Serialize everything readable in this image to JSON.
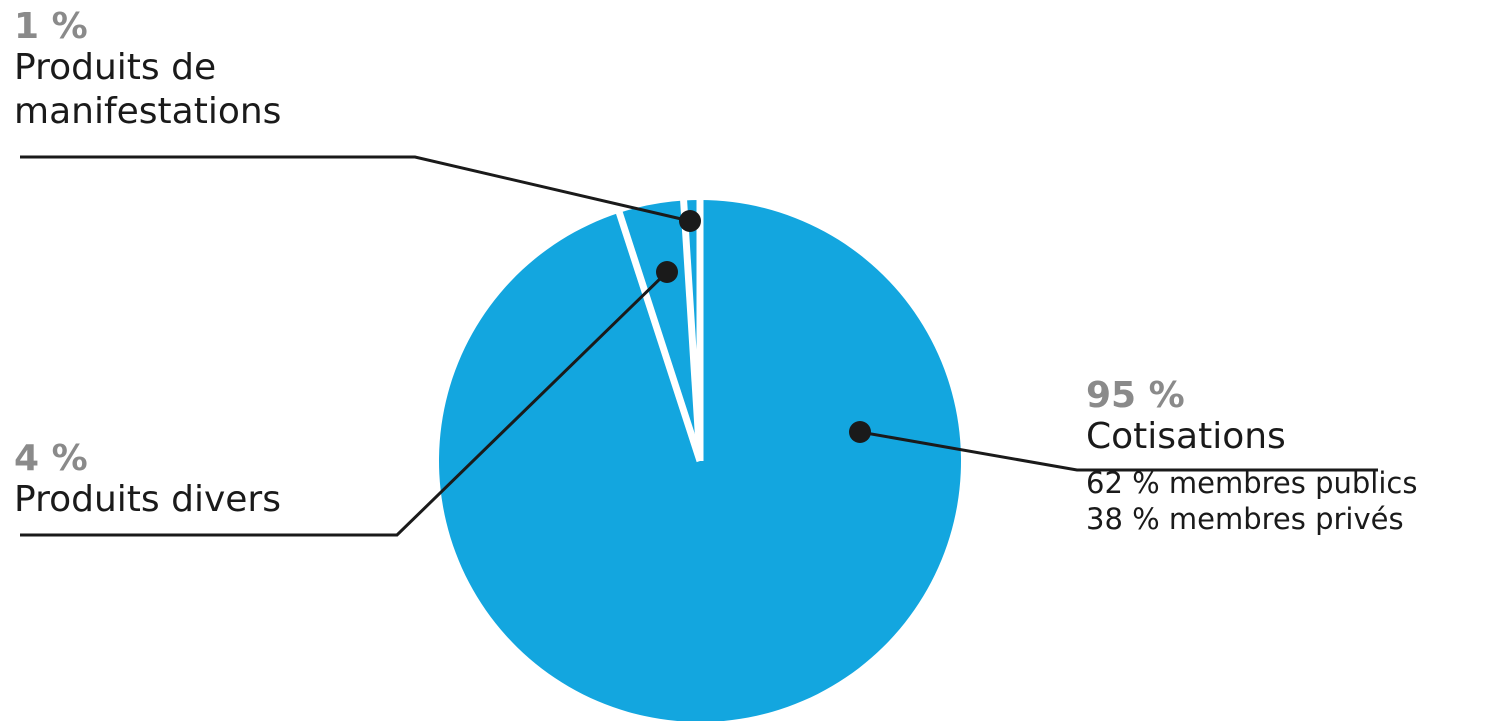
{
  "chart_data": {
    "type": "pie",
    "slices": [
      {
        "label": "Cotisations",
        "value": 95,
        "value_label": "95 %",
        "details": [
          "62 % membres publics",
          "38 % membres privés"
        ],
        "color": "#13a6df"
      },
      {
        "label": "Produits divers",
        "value": 4,
        "value_label": "4 %",
        "details": [],
        "color": "#13a6df"
      },
      {
        "label": "Produits de manifestations",
        "value": 1,
        "value_label": "1 %",
        "details": [],
        "color": "#13a6df"
      }
    ],
    "start_angle": "top",
    "direction": "clockwise",
    "separator_color": "#ffffff",
    "leader_color": "#1a1a1a",
    "pct_color": "#8a8a8a",
    "legend": "none"
  },
  "labels": {
    "manifestations": {
      "pct": "1 %",
      "name_line1": "Produits de",
      "name_line2": "manifestations"
    },
    "divers": {
      "pct": "4 %",
      "name": "Produits divers"
    },
    "cotisations": {
      "pct": "95 %",
      "name": "Cotisations",
      "detail1": "62 % membres publics",
      "detail2": "38 % membres privés"
    }
  }
}
